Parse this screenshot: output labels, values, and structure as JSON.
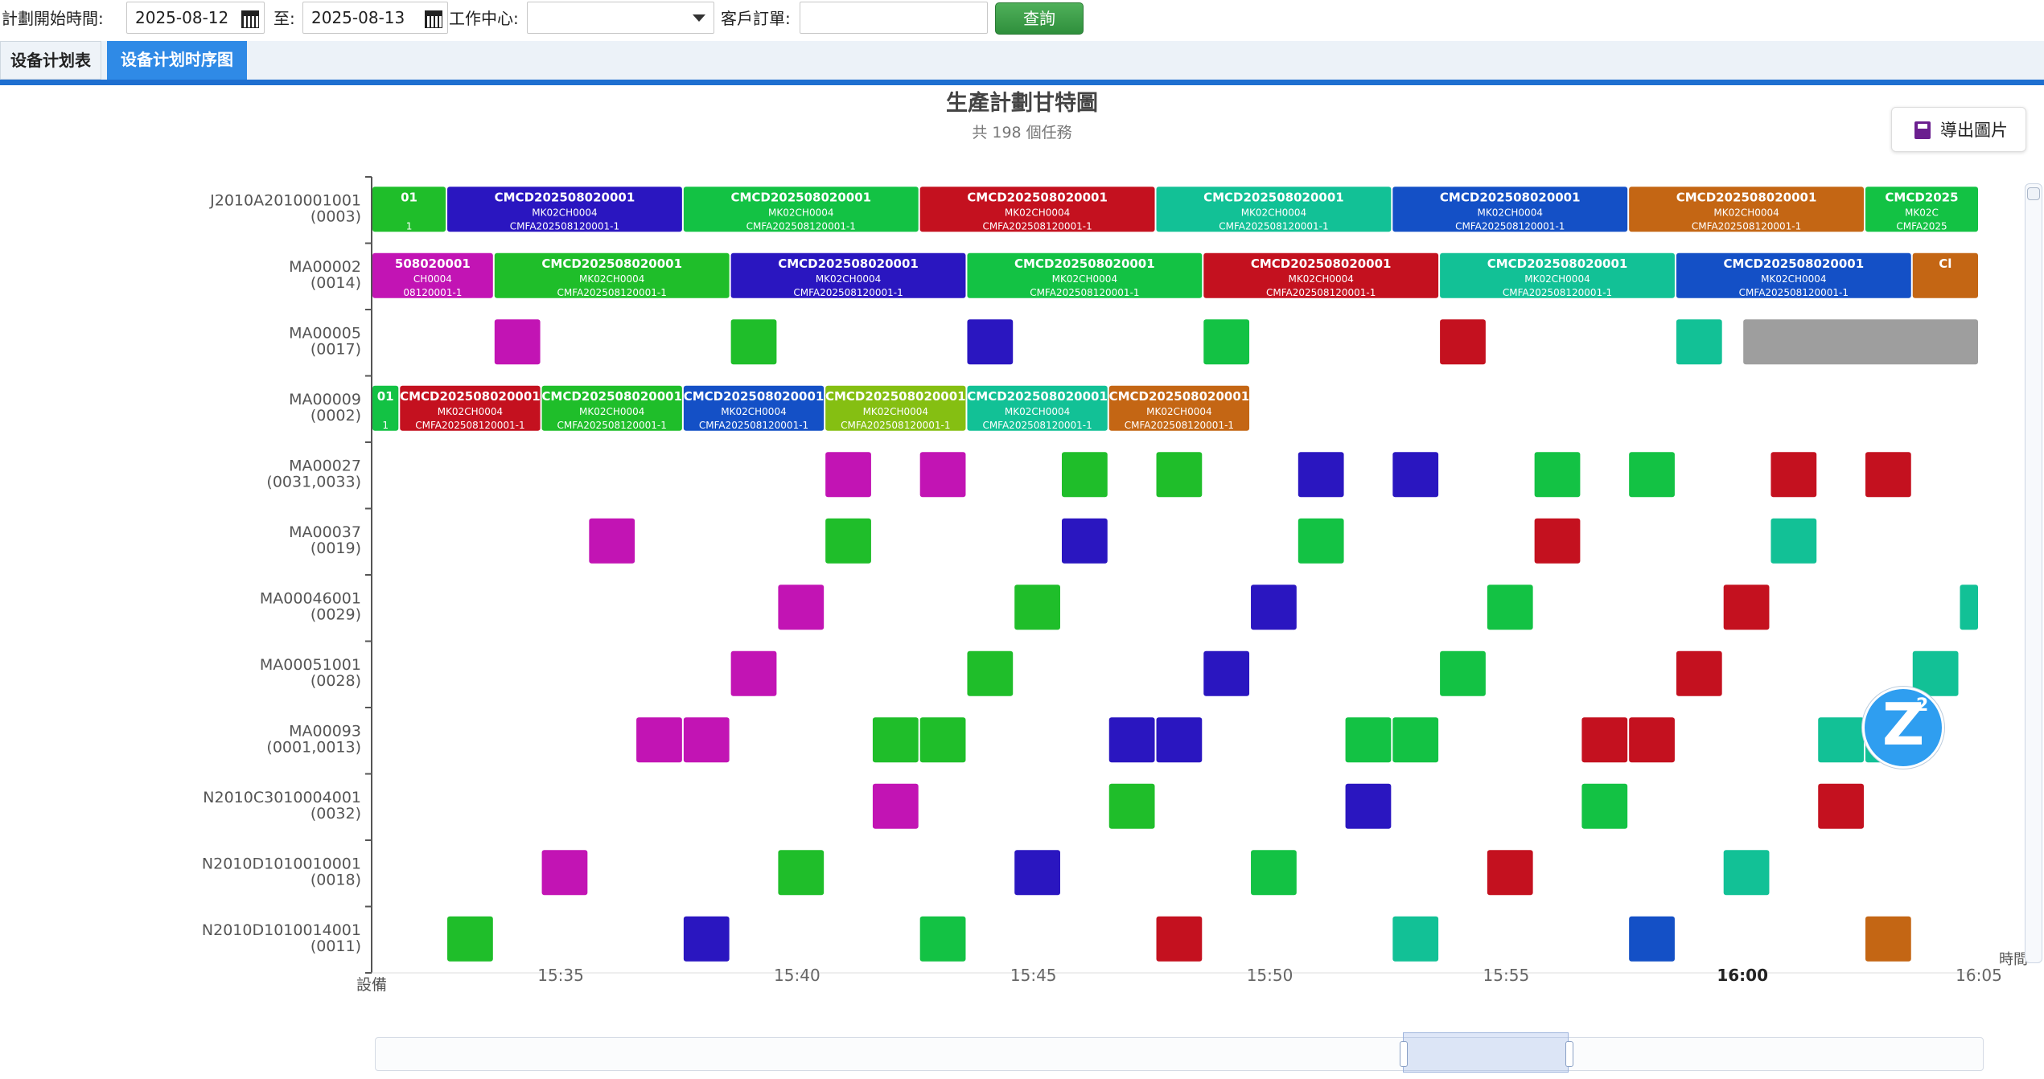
{
  "filters": {
    "start_label": "計劃開始時間:",
    "start_value": "2025-08-12",
    "to_label": "至:",
    "end_value": "2025-08-13",
    "workcenter_label": "工作中心:",
    "workcenter_value": "",
    "customer_order_label": "客戶訂單:",
    "customer_order_value": "",
    "query_label": "查詢"
  },
  "tabs": [
    {
      "label": "设备计划表",
      "active": false
    },
    {
      "label": "设备计划时序图",
      "active": true
    }
  ],
  "export_label": "導出圖片",
  "chart_data": {
    "type": "gantt",
    "title": "生產計劃甘特圖",
    "subtitle": "共 198 個任務",
    "xlabel": "時間",
    "ylabel": "設備",
    "x_ticks": [
      "15:35",
      "15:40",
      "15:45",
      "15:50",
      "15:55",
      "16:00",
      "16:05"
    ],
    "x_range": [
      "15:31",
      "16:05"
    ],
    "colors": {
      "green": "#1fbe2a",
      "green2": "#13c244",
      "navy": "#2a16c0",
      "red": "#c4111f",
      "teal": "#12c196",
      "blue": "#1450c6",
      "orange": "#c46614",
      "magenta": "#c214b4",
      "lime": "#85bf12",
      "gray": "#9e9e9e"
    },
    "rows": [
      {
        "name": "J2010A2010001001",
        "code": "(0003)",
        "tasks": [
          {
            "start": "15:31:00",
            "end": "15:32:35",
            "color": "green",
            "l1": "01",
            "l2": "",
            "l3": "1"
          },
          {
            "start": "15:32:35",
            "end": "15:37:35",
            "color": "navy",
            "l1": "CMCD202508020001",
            "l2": "MK02CH0004",
            "l3": "CMFA202508120001-1"
          },
          {
            "start": "15:37:35",
            "end": "15:42:35",
            "color": "green2",
            "l1": "CMCD202508020001",
            "l2": "MK02CH0004",
            "l3": "CMFA202508120001-1"
          },
          {
            "start": "15:42:35",
            "end": "15:47:35",
            "color": "red",
            "l1": "CMCD202508020001",
            "l2": "MK02CH0004",
            "l3": "CMFA202508120001-1"
          },
          {
            "start": "15:47:35",
            "end": "15:52:35",
            "color": "teal",
            "l1": "CMCD202508020001",
            "l2": "MK02CH0004",
            "l3": "CMFA202508120001-1"
          },
          {
            "start": "15:52:35",
            "end": "15:57:35",
            "color": "blue",
            "l1": "CMCD202508020001",
            "l2": "MK02CH0004",
            "l3": "CMFA202508120001-1"
          },
          {
            "start": "15:57:35",
            "end": "16:02:35",
            "color": "orange",
            "l1": "CMCD202508020001",
            "l2": "MK02CH0004",
            "l3": "CMFA202508120001-1"
          },
          {
            "start": "16:02:35",
            "end": "16:05:00",
            "color": "green2",
            "l1": "CMCD2025",
            "l2": "MK02C",
            "l3": "CMFA2025"
          }
        ]
      },
      {
        "name": "MA00002",
        "code": "(0014)",
        "tasks": [
          {
            "start": "15:31:00",
            "end": "15:33:35",
            "color": "magenta",
            "l1": "508020001",
            "l2": "CH0004",
            "l3": "08120001-1"
          },
          {
            "start": "15:33:35",
            "end": "15:38:35",
            "color": "green",
            "l1": "CMCD202508020001",
            "l2": "MK02CH0004",
            "l3": "CMFA202508120001-1"
          },
          {
            "start": "15:38:35",
            "end": "15:43:35",
            "color": "navy",
            "l1": "CMCD202508020001",
            "l2": "MK02CH0004",
            "l3": "CMFA202508120001-1"
          },
          {
            "start": "15:43:35",
            "end": "15:48:35",
            "color": "green2",
            "l1": "CMCD202508020001",
            "l2": "MK02CH0004",
            "l3": "CMFA202508120001-1"
          },
          {
            "start": "15:48:35",
            "end": "15:53:35",
            "color": "red",
            "l1": "CMCD202508020001",
            "l2": "MK02CH0004",
            "l3": "CMFA202508120001-1"
          },
          {
            "start": "15:53:35",
            "end": "15:58:35",
            "color": "teal",
            "l1": "CMCD202508020001",
            "l2": "MK02CH0004",
            "l3": "CMFA202508120001-1"
          },
          {
            "start": "15:58:35",
            "end": "16:03:35",
            "color": "blue",
            "l1": "CMCD202508020001",
            "l2": "MK02CH0004",
            "l3": "CMFA202508120001-1"
          },
          {
            "start": "16:03:35",
            "end": "16:05:00",
            "color": "orange",
            "l1": "Cl",
            "l2": "",
            "l3": ""
          }
        ]
      },
      {
        "name": "MA00005",
        "code": "(0017)",
        "tasks": [
          {
            "start": "15:33:35",
            "end": "15:34:35",
            "color": "magenta"
          },
          {
            "start": "15:38:35",
            "end": "15:39:35",
            "color": "green"
          },
          {
            "start": "15:43:35",
            "end": "15:44:35",
            "color": "navy"
          },
          {
            "start": "15:48:35",
            "end": "15:49:35",
            "color": "green2"
          },
          {
            "start": "15:53:35",
            "end": "15:54:35",
            "color": "red"
          },
          {
            "start": "15:58:35",
            "end": "15:59:35",
            "color": "teal"
          },
          {
            "start": "16:00:00",
            "end": "16:05:00",
            "color": "gray"
          }
        ]
      },
      {
        "name": "MA00009",
        "code": "(0002)",
        "tasks": [
          {
            "start": "15:31:00",
            "end": "15:31:35",
            "color": "green2",
            "l1": "01",
            "l2": "",
            "l3": "1"
          },
          {
            "start": "15:31:35",
            "end": "15:34:35",
            "color": "red",
            "l1": "CMCD202508020001",
            "l2": "MK02CH0004",
            "l3": "CMFA202508120001-1"
          },
          {
            "start": "15:34:35",
            "end": "15:37:35",
            "color": "green",
            "l1": "CMCD202508020001",
            "l2": "MK02CH0004",
            "l3": "CMFA202508120001-1"
          },
          {
            "start": "15:37:35",
            "end": "15:40:35",
            "color": "blue",
            "l1": "CMCD202508020001",
            "l2": "MK02CH0004",
            "l3": "CMFA202508120001-1"
          },
          {
            "start": "15:40:35",
            "end": "15:43:35",
            "color": "lime",
            "l1": "CMCD202508020001",
            "l2": "MK02CH0004",
            "l3": "CMFA202508120001-1"
          },
          {
            "start": "15:43:35",
            "end": "15:46:35",
            "color": "teal",
            "l1": "CMCD202508020001",
            "l2": "MK02CH0004",
            "l3": "CMFA202508120001-1"
          },
          {
            "start": "15:46:35",
            "end": "15:49:35",
            "color": "orange",
            "l1": "CMCD202508020001",
            "l2": "MK02CH0004",
            "l3": "CMFA202508120001-1"
          }
        ]
      },
      {
        "name": "MA00027",
        "code": "(0031,0033)",
        "tasks": [
          {
            "start": "15:40:35",
            "end": "15:41:35",
            "color": "magenta"
          },
          {
            "start": "15:42:35",
            "end": "15:43:35",
            "color": "magenta"
          },
          {
            "start": "15:45:35",
            "end": "15:46:35",
            "color": "green"
          },
          {
            "start": "15:47:35",
            "end": "15:48:35",
            "color": "green"
          },
          {
            "start": "15:50:35",
            "end": "15:51:35",
            "color": "navy"
          },
          {
            "start": "15:52:35",
            "end": "15:53:35",
            "color": "navy"
          },
          {
            "start": "15:55:35",
            "end": "15:56:35",
            "color": "green2"
          },
          {
            "start": "15:57:35",
            "end": "15:58:35",
            "color": "green2"
          },
          {
            "start": "16:00:35",
            "end": "16:01:35",
            "color": "red"
          },
          {
            "start": "16:02:35",
            "end": "16:03:35",
            "color": "red"
          }
        ]
      },
      {
        "name": "MA00037",
        "code": "(0019)",
        "tasks": [
          {
            "start": "15:35:35",
            "end": "15:36:35",
            "color": "magenta"
          },
          {
            "start": "15:40:35",
            "end": "15:41:35",
            "color": "green"
          },
          {
            "start": "15:45:35",
            "end": "15:46:35",
            "color": "navy"
          },
          {
            "start": "15:50:35",
            "end": "15:51:35",
            "color": "green2"
          },
          {
            "start": "15:55:35",
            "end": "15:56:35",
            "color": "red"
          },
          {
            "start": "16:00:35",
            "end": "16:01:35",
            "color": "teal"
          }
        ]
      },
      {
        "name": "MA00046001",
        "code": "(0029)",
        "tasks": [
          {
            "start": "15:39:35",
            "end": "15:40:35",
            "color": "magenta"
          },
          {
            "start": "15:44:35",
            "end": "15:45:35",
            "color": "green"
          },
          {
            "start": "15:49:35",
            "end": "15:50:35",
            "color": "navy"
          },
          {
            "start": "15:54:35",
            "end": "15:55:35",
            "color": "green2"
          },
          {
            "start": "15:59:35",
            "end": "16:00:35",
            "color": "red"
          },
          {
            "start": "16:04:35",
            "end": "16:05:00",
            "color": "teal"
          }
        ]
      },
      {
        "name": "MA00051001",
        "code": "(0028)",
        "tasks": [
          {
            "start": "15:38:35",
            "end": "15:39:35",
            "color": "magenta"
          },
          {
            "start": "15:43:35",
            "end": "15:44:35",
            "color": "green"
          },
          {
            "start": "15:48:35",
            "end": "15:49:35",
            "color": "navy"
          },
          {
            "start": "15:53:35",
            "end": "15:54:35",
            "color": "green2"
          },
          {
            "start": "15:58:35",
            "end": "15:59:35",
            "color": "red"
          },
          {
            "start": "16:03:35",
            "end": "16:04:35",
            "color": "teal"
          }
        ]
      },
      {
        "name": "MA00093",
        "code": "(0001,0013)",
        "tasks": [
          {
            "start": "15:36:35",
            "end": "15:37:35",
            "color": "magenta"
          },
          {
            "start": "15:37:35",
            "end": "15:38:35",
            "color": "magenta"
          },
          {
            "start": "15:41:35",
            "end": "15:42:35",
            "color": "green"
          },
          {
            "start": "15:42:35",
            "end": "15:43:35",
            "color": "green"
          },
          {
            "start": "15:46:35",
            "end": "15:47:35",
            "color": "navy"
          },
          {
            "start": "15:47:35",
            "end": "15:48:35",
            "color": "navy"
          },
          {
            "start": "15:51:35",
            "end": "15:52:35",
            "color": "green2"
          },
          {
            "start": "15:52:35",
            "end": "15:53:35",
            "color": "green2"
          },
          {
            "start": "15:56:35",
            "end": "15:57:35",
            "color": "red"
          },
          {
            "start": "15:57:35",
            "end": "15:58:35",
            "color": "red"
          },
          {
            "start": "16:01:35",
            "end": "16:02:35",
            "color": "teal"
          },
          {
            "start": "16:02:35",
            "end": "16:03:35",
            "color": "teal"
          }
        ]
      },
      {
        "name": "N2010C3010004001",
        "code": "(0032)",
        "tasks": [
          {
            "start": "15:41:35",
            "end": "15:42:35",
            "color": "magenta"
          },
          {
            "start": "15:46:35",
            "end": "15:47:35",
            "color": "green"
          },
          {
            "start": "15:51:35",
            "end": "15:52:35",
            "color": "navy"
          },
          {
            "start": "15:56:35",
            "end": "15:57:35",
            "color": "green2"
          },
          {
            "start": "16:01:35",
            "end": "16:02:35",
            "color": "red"
          }
        ]
      },
      {
        "name": "N2010D1010010001",
        "code": "(0018)",
        "tasks": [
          {
            "start": "15:34:35",
            "end": "15:35:35",
            "color": "magenta"
          },
          {
            "start": "15:39:35",
            "end": "15:40:35",
            "color": "green"
          },
          {
            "start": "15:44:35",
            "end": "15:45:35",
            "color": "navy"
          },
          {
            "start": "15:49:35",
            "end": "15:50:35",
            "color": "green2"
          },
          {
            "start": "15:54:35",
            "end": "15:55:35",
            "color": "red"
          },
          {
            "start": "15:59:35",
            "end": "16:00:35",
            "color": "teal"
          }
        ]
      },
      {
        "name": "N2010D1010014001",
        "code": "(0011)",
        "tasks": [
          {
            "start": "15:32:35",
            "end": "15:33:35",
            "color": "green"
          },
          {
            "start": "15:37:35",
            "end": "15:38:35",
            "color": "navy"
          },
          {
            "start": "15:42:35",
            "end": "15:43:35",
            "color": "green2"
          },
          {
            "start": "15:47:35",
            "end": "15:48:35",
            "color": "red"
          },
          {
            "start": "15:52:35",
            "end": "15:53:35",
            "color": "teal"
          },
          {
            "start": "15:57:35",
            "end": "15:58:35",
            "color": "blue"
          },
          {
            "start": "16:02:35",
            "end": "16:03:35",
            "color": "orange"
          }
        ]
      }
    ]
  }
}
